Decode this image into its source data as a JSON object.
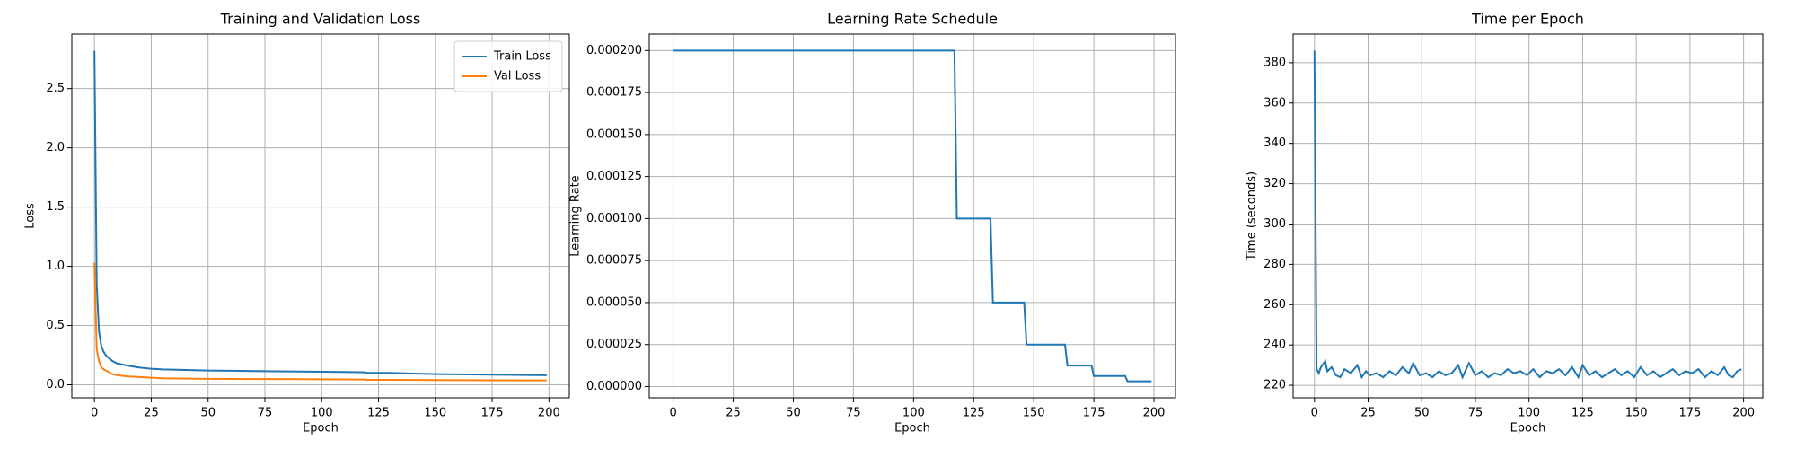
{
  "chart_data": [
    {
      "type": "line",
      "title": "Training and Validation Loss",
      "xlabel": "Epoch",
      "ylabel": "Loss",
      "x": [
        0,
        1,
        2,
        3,
        4,
        5,
        6,
        8,
        10,
        15,
        20,
        25,
        30,
        40,
        50,
        60,
        75,
        90,
        100,
        110,
        119,
        120,
        130,
        140,
        150,
        160,
        175,
        190,
        199
      ],
      "series": [
        {
          "name": "Train Loss",
          "color": "#1f77b4",
          "values": [
            2.82,
            0.85,
            0.45,
            0.33,
            0.28,
            0.25,
            0.23,
            0.2,
            0.18,
            0.16,
            0.145,
            0.135,
            0.13,
            0.125,
            0.12,
            0.118,
            0.115,
            0.112,
            0.11,
            0.108,
            0.105,
            0.1,
            0.1,
            0.095,
            0.09,
            0.088,
            0.085,
            0.082,
            0.08
          ]
        },
        {
          "name": "Val Loss",
          "color": "#ff7f0e",
          "values": [
            1.03,
            0.3,
            0.2,
            0.15,
            0.13,
            0.12,
            0.11,
            0.09,
            0.08,
            0.07,
            0.065,
            0.06,
            0.055,
            0.052,
            0.05,
            0.049,
            0.048,
            0.047,
            0.046,
            0.045,
            0.044,
            0.042,
            0.042,
            0.041,
            0.04,
            0.039,
            0.038,
            0.037,
            0.037
          ]
        }
      ],
      "xlim": [
        -9.95,
        208.95
      ],
      "xticks": [
        0,
        25,
        50,
        75,
        100,
        125,
        150,
        175,
        200
      ],
      "ylim": [
        -0.11,
        2.96
      ],
      "yticks": [
        {
          "value": 0,
          "label": "0.0"
        },
        0.5,
        {
          "value": 1,
          "label": "1.0"
        },
        1.5,
        {
          "value": 2,
          "label": "2.0"
        },
        2.5
      ],
      "grid": true,
      "legend": "upper right"
    },
    {
      "type": "line",
      "title": "Learning Rate Schedule",
      "xlabel": "Epoch",
      "ylabel": "Learning Rate",
      "x": [
        0,
        117,
        118,
        132,
        133,
        146,
        147,
        163,
        164,
        174,
        175,
        188,
        189,
        199
      ],
      "series": [
        {
          "name": "Learning Rate",
          "color": "#1f77b4",
          "values": [
            0.0002,
            0.0002,
            0.0001,
            0.0001,
            5e-05,
            5e-05,
            2.5e-05,
            2.5e-05,
            1.25e-05,
            1.25e-05,
            6.25e-06,
            6.25e-06,
            3.125e-06,
            3.125e-06
          ]
        }
      ],
      "xlim": [
        -9.95,
        208.95
      ],
      "xticks": [
        0,
        25,
        50,
        75,
        100,
        125,
        150,
        175,
        200
      ],
      "ylim": [
        -6.7e-06,
        0.0002098
      ],
      "yticks": [
        {
          "value": 0,
          "label": "0.000000"
        },
        {
          "value": 2.5e-05,
          "label": "0.000025"
        },
        {
          "value": 5e-05,
          "label": "0.000050"
        },
        {
          "value": 7.5e-05,
          "label": "0.000075"
        },
        {
          "value": 0.0001,
          "label": "0.000100"
        },
        {
          "value": 0.000125,
          "label": "0.000125"
        },
        {
          "value": 0.00015,
          "label": "0.000150"
        },
        {
          "value": 0.000175,
          "label": "0.000175"
        },
        {
          "value": 0.0002,
          "label": "0.000200"
        }
      ],
      "grid": true
    },
    {
      "type": "line",
      "title": "Time per Epoch",
      "xlabel": "Epoch",
      "ylabel": "Time (seconds)",
      "x": [
        0,
        1,
        2,
        3,
        5,
        6,
        8,
        10,
        12,
        14,
        17,
        20,
        22,
        24,
        26,
        29,
        32,
        35,
        38,
        41,
        44,
        46,
        49,
        52,
        55,
        58,
        61,
        64,
        67,
        69,
        72,
        75,
        78,
        81,
        84,
        87,
        90,
        93,
        96,
        99,
        102,
        105,
        108,
        111,
        114,
        117,
        120,
        123,
        125,
        128,
        131,
        134,
        137,
        140,
        143,
        146,
        149,
        152,
        155,
        158,
        161,
        164,
        167,
        170,
        173,
        176,
        179,
        182,
        185,
        188,
        191,
        193,
        195,
        197,
        199
      ],
      "series": [
        {
          "name": "Time",
          "color": "#1f77b4",
          "values": [
            386,
            228,
            226,
            229,
            232,
            227,
            229,
            225,
            224,
            228,
            226,
            230,
            224,
            227,
            225,
            226,
            224,
            227,
            225,
            229,
            226,
            231,
            225,
            226,
            224,
            227,
            225,
            226,
            230,
            224,
            231,
            225,
            227,
            224,
            226,
            225,
            228,
            226,
            227,
            225,
            228,
            224,
            227,
            226,
            228,
            225,
            229,
            224,
            230,
            225,
            227,
            224,
            226,
            228,
            225,
            227,
            224,
            229,
            225,
            227,
            224,
            226,
            228,
            225,
            227,
            226,
            228,
            224,
            227,
            225,
            229,
            225,
            224,
            227,
            228
          ]
        }
      ],
      "xlim": [
        -9.95,
        208.95
      ],
      "xticks": [
        0,
        25,
        50,
        75,
        100,
        125,
        150,
        175,
        200
      ],
      "ylim": [
        213.8,
        394.2
      ],
      "yticks": [
        220,
        240,
        260,
        280,
        300,
        320,
        340,
        360,
        380
      ],
      "grid": true
    }
  ]
}
